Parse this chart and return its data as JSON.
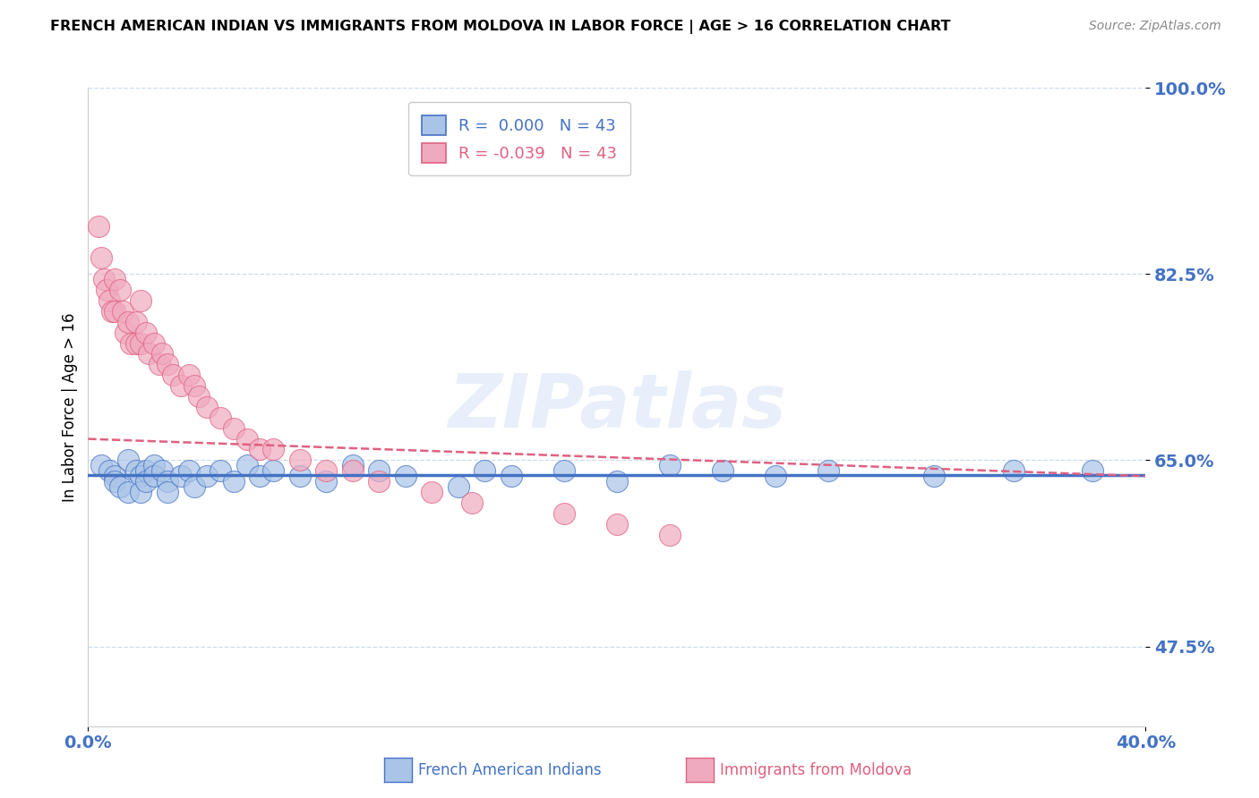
{
  "title": "FRENCH AMERICAN INDIAN VS IMMIGRANTS FROM MOLDOVA IN LABOR FORCE | AGE > 16 CORRELATION CHART",
  "source": "Source: ZipAtlas.com",
  "ylabel": "In Labor Force | Age > 16",
  "x_min": 0.0,
  "x_max": 0.4,
  "y_min": 0.4,
  "y_max": 1.0,
  "y_ticks": [
    1.0,
    0.825,
    0.65,
    0.475
  ],
  "y_tick_labels": [
    "100.0%",
    "82.5%",
    "65.0%",
    "47.5%"
  ],
  "x_ticks": [
    0.0,
    0.4
  ],
  "x_tick_labels": [
    "0.0%",
    "40.0%"
  ],
  "legend_blue_r": "0.000",
  "legend_blue_n": "43",
  "legend_pink_r": "-0.039",
  "legend_pink_n": "43",
  "blue_color": "#aac4e8",
  "pink_color": "#f0aac0",
  "line_blue_color": "#4472c4",
  "line_pink_color": "#e06080",
  "watermark": "ZIPatlas",
  "blue_scatter_x": [
    0.005,
    0.008,
    0.01,
    0.01,
    0.012,
    0.015,
    0.015,
    0.018,
    0.02,
    0.02,
    0.022,
    0.022,
    0.025,
    0.025,
    0.028,
    0.03,
    0.03,
    0.035,
    0.038,
    0.04,
    0.045,
    0.05,
    0.055,
    0.06,
    0.065,
    0.07,
    0.08,
    0.09,
    0.1,
    0.11,
    0.12,
    0.14,
    0.15,
    0.16,
    0.18,
    0.2,
    0.22,
    0.24,
    0.26,
    0.28,
    0.32,
    0.35,
    0.38
  ],
  "blue_scatter_y": [
    0.645,
    0.64,
    0.635,
    0.63,
    0.625,
    0.65,
    0.62,
    0.64,
    0.635,
    0.62,
    0.64,
    0.63,
    0.645,
    0.635,
    0.64,
    0.63,
    0.62,
    0.635,
    0.64,
    0.625,
    0.635,
    0.64,
    0.63,
    0.645,
    0.635,
    0.64,
    0.635,
    0.63,
    0.645,
    0.64,
    0.635,
    0.625,
    0.64,
    0.635,
    0.64,
    0.63,
    0.645,
    0.64,
    0.635,
    0.64,
    0.635,
    0.64,
    0.64
  ],
  "pink_scatter_x": [
    0.004,
    0.005,
    0.006,
    0.007,
    0.008,
    0.009,
    0.01,
    0.01,
    0.012,
    0.013,
    0.014,
    0.015,
    0.016,
    0.018,
    0.018,
    0.02,
    0.02,
    0.022,
    0.023,
    0.025,
    0.027,
    0.028,
    0.03,
    0.032,
    0.035,
    0.038,
    0.04,
    0.042,
    0.045,
    0.05,
    0.055,
    0.06,
    0.065,
    0.07,
    0.08,
    0.09,
    0.1,
    0.11,
    0.13,
    0.145,
    0.18,
    0.2,
    0.22
  ],
  "pink_scatter_y": [
    0.87,
    0.84,
    0.82,
    0.81,
    0.8,
    0.79,
    0.82,
    0.79,
    0.81,
    0.79,
    0.77,
    0.78,
    0.76,
    0.78,
    0.76,
    0.8,
    0.76,
    0.77,
    0.75,
    0.76,
    0.74,
    0.75,
    0.74,
    0.73,
    0.72,
    0.73,
    0.72,
    0.71,
    0.7,
    0.69,
    0.68,
    0.67,
    0.66,
    0.66,
    0.65,
    0.64,
    0.64,
    0.63,
    0.62,
    0.61,
    0.6,
    0.59,
    0.58
  ]
}
